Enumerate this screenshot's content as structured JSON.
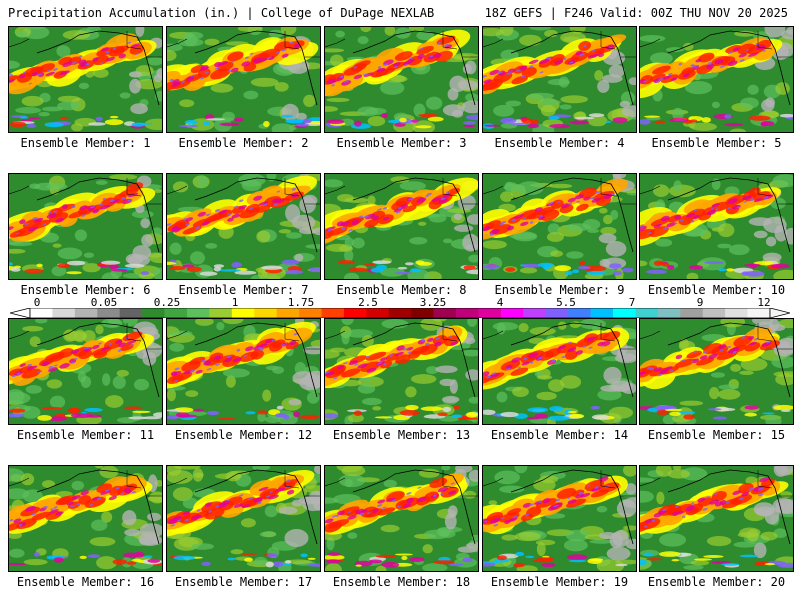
{
  "header": {
    "title_left": "Precipitation Accumulation (in.) | College of DuPage NEXLAB",
    "title_right": "18Z GEFS | F246 Valid: 00Z THU NOV 20 2025"
  },
  "panels": [
    {
      "caption": "Ensemble Member: 1"
    },
    {
      "caption": "Ensemble Member: 2"
    },
    {
      "caption": "Ensemble Member: 3"
    },
    {
      "caption": "Ensemble Member: 4"
    },
    {
      "caption": "Ensemble Member: 5"
    },
    {
      "caption": "Ensemble Member: 6"
    },
    {
      "caption": "Ensemble Member: 7"
    },
    {
      "caption": "Ensemble Member: 8"
    },
    {
      "caption": "Ensemble Member: 9"
    },
    {
      "caption": "Ensemble Member: 10"
    },
    {
      "caption": "Ensemble Member: 11"
    },
    {
      "caption": "Ensemble Member: 12"
    },
    {
      "caption": "Ensemble Member: 13"
    },
    {
      "caption": "Ensemble Member: 14"
    },
    {
      "caption": "Ensemble Member: 15"
    },
    {
      "caption": "Ensemble Member: 16"
    },
    {
      "caption": "Ensemble Member: 17"
    },
    {
      "caption": "Ensemble Member: 18"
    },
    {
      "caption": "Ensemble Member: 19"
    },
    {
      "caption": "Ensemble Member: 20"
    }
  ],
  "colorbar": {
    "labels": [
      "0",
      "0.05",
      "0.25",
      "1",
      "1.75",
      "2.5",
      "3.25",
      "4",
      "5.5",
      "7",
      "9",
      "12"
    ],
    "colors": [
      "#ffffff",
      "#d9d9d9",
      "#b4b4b4",
      "#8c8c8c",
      "#646464",
      "#2e8b2e",
      "#40a640",
      "#5cc05c",
      "#9acd32",
      "#ffff00",
      "#ffd700",
      "#ffa500",
      "#ff8000",
      "#ff4000",
      "#ff0000",
      "#d40000",
      "#a00000",
      "#800000",
      "#a00050",
      "#c0007a",
      "#e000a0",
      "#ff00ff",
      "#c040ff",
      "#8060ff",
      "#4080ff",
      "#00c0ff",
      "#00ffff",
      "#40d0d0",
      "#80c0c0",
      "#a0a0a0",
      "#c0c0c0",
      "#e0e0e0",
      "#f5f5f5"
    ]
  }
}
